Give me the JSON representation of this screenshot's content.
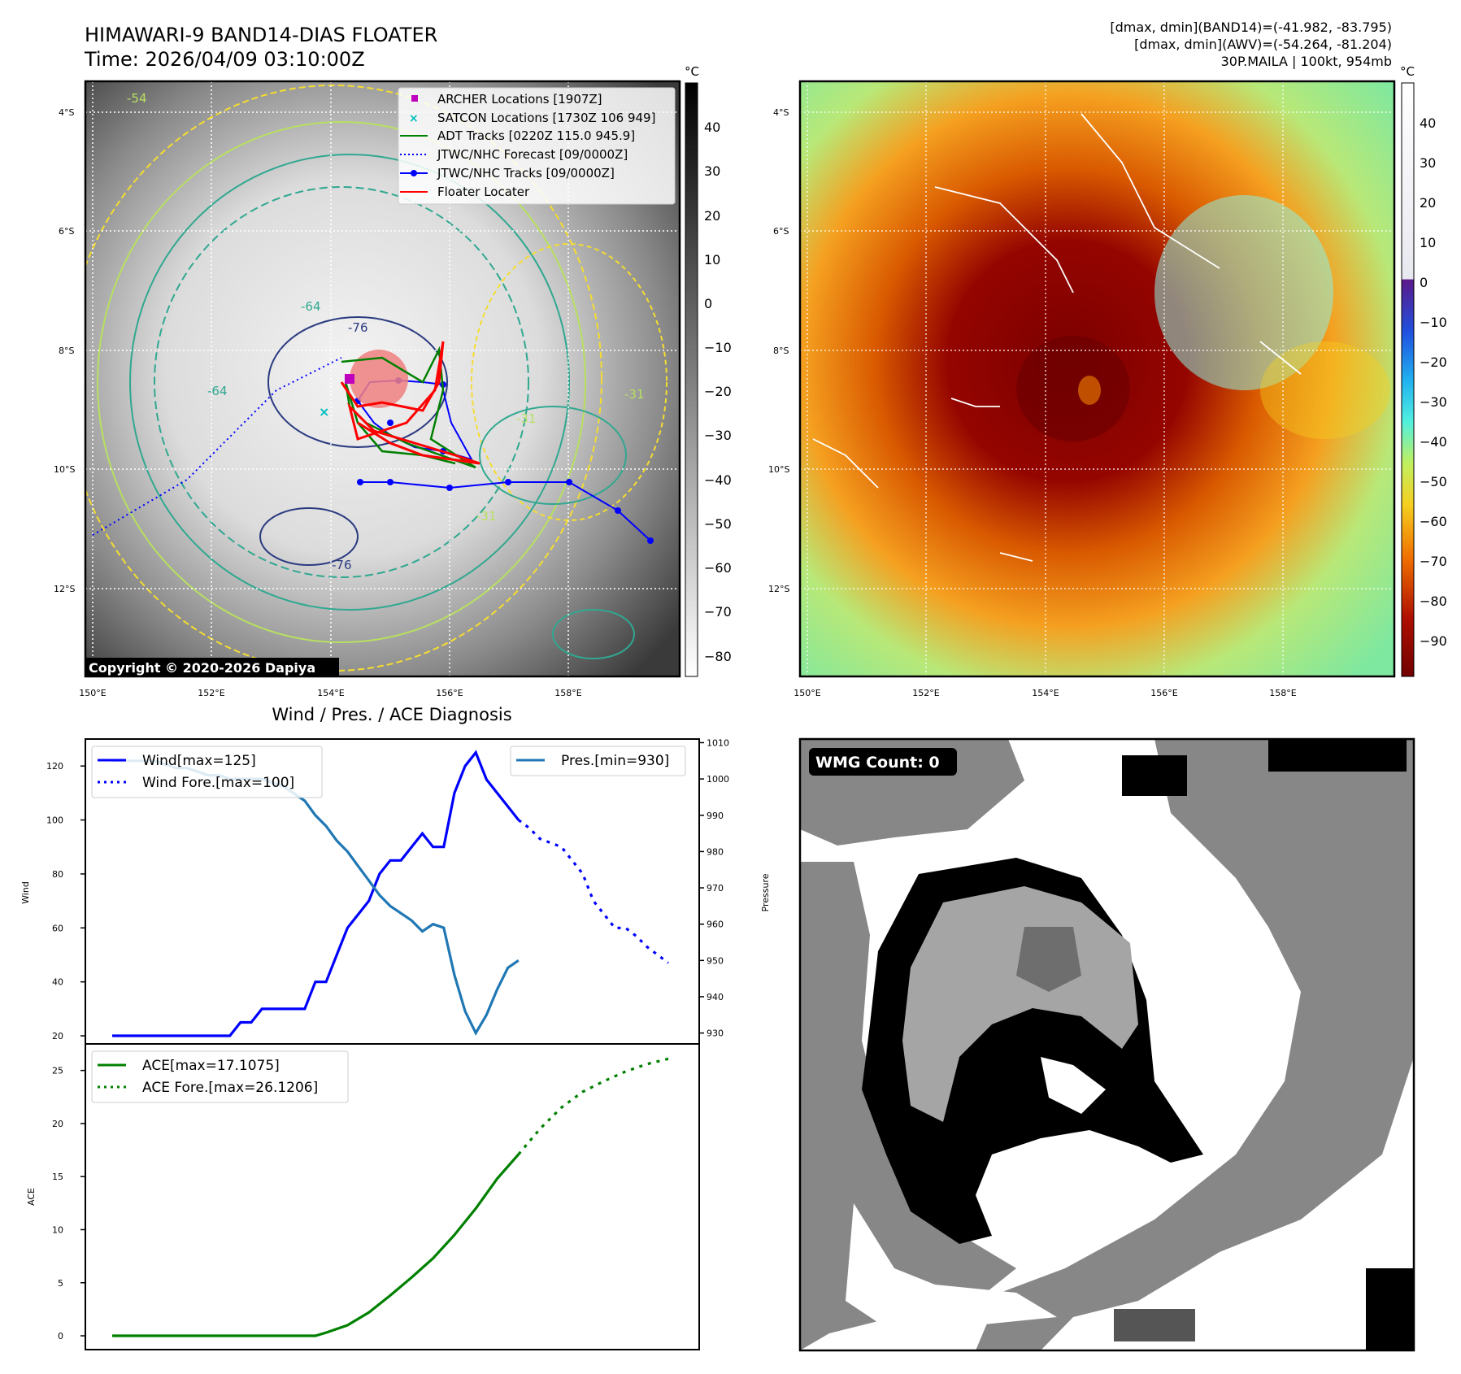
{
  "header": {
    "title_line1": "HIMAWARI-9 BAND14-DIAS FLOATER",
    "title_line2": "Time: 2026/04/09 03:10:00Z",
    "info_line1": "[dmax, dmin](BAND14)=(-41.982, -83.795)",
    "info_line2": "[dmax, dmin](AWV)=(-54.264, -81.204)",
    "info_line3": "30P.MAILA | 100kt, 954mb"
  },
  "map": {
    "lat_labels": [
      "4°S",
      "6°S",
      "8°S",
      "10°S",
      "12°S"
    ],
    "lon_labels": [
      "150°E",
      "152°E",
      "154°E",
      "156°E",
      "158°E"
    ],
    "copyright": "Copyright © 2020-2026 Dapiya",
    "contour_labels": [
      "-54",
      "-64",
      "-76",
      "-64",
      "-76",
      "-31",
      "-31",
      "-31"
    ],
    "legend": [
      {
        "label": "ARCHER Locations [1907Z]",
        "color": "#bf00bf",
        "style": "square"
      },
      {
        "label": "SATCON Locations [1730Z 106 949]",
        "color": "#00bfbf",
        "style": "x"
      },
      {
        "label": "ADT Tracks [0220Z 115.0 945.9]",
        "color": "#008000",
        "style": "line"
      },
      {
        "label": "JTWC/NHC Forecast [09/0000Z]",
        "color": "#0000ff",
        "style": "dotted"
      },
      {
        "label": "JTWC/NHC Tracks [09/0000Z]",
        "color": "#0000ff",
        "style": "line-dot"
      },
      {
        "label": "Floater Locater",
        "color": "#ff0000",
        "style": "line"
      }
    ]
  },
  "colorbar_ir": {
    "unit": "°C",
    "ticks": [
      "40",
      "30",
      "20",
      "10",
      "0",
      "−10",
      "−20",
      "−30",
      "−40",
      "−50",
      "−60",
      "−70",
      "−80"
    ]
  },
  "colorbar_wv": {
    "unit": "°C",
    "ticks": [
      "40",
      "30",
      "20",
      "10",
      "0",
      "−10",
      "−20",
      "−30",
      "−40",
      "−50",
      "−60",
      "−70",
      "−80",
      "−90"
    ]
  },
  "diag": {
    "title": "Wind / Pres. / ACE Diagnosis",
    "wind_ylabel": "Wind",
    "pres_ylabel": "Pressure",
    "ace_ylabel": "ACE",
    "legend_wind": "Wind[max=125]",
    "legend_wind_fore": "Wind Fore.[max=100]",
    "legend_pres": "Pres.[min=930]",
    "legend_ace": "ACE[max=17.1075]",
    "legend_ace_fore": "ACE Fore.[max=26.1206]"
  },
  "wmg": {
    "label": "WMG Count: 0"
  },
  "chart_data": [
    {
      "type": "line",
      "title": "Wind / Pres. / ACE Diagnosis",
      "ylabel": "Wind",
      "ylim": [
        17,
        130
      ],
      "yticks": [
        20,
        40,
        60,
        80,
        100,
        120
      ],
      "series": [
        {
          "name": "Wind[max=125]",
          "color": "#0000ff",
          "style": "solid",
          "x": [
            0,
            1,
            2,
            3,
            4,
            5,
            6,
            7,
            8,
            9,
            10,
            11,
            12,
            13,
            14,
            15,
            16,
            17,
            18,
            19,
            20,
            21,
            22,
            23,
            24,
            25,
            26,
            27,
            28,
            29,
            30,
            31,
            32,
            33,
            34,
            35,
            36,
            37,
            38
          ],
          "values": [
            20,
            20,
            20,
            20,
            20,
            20,
            20,
            20,
            20,
            20,
            20,
            20,
            25,
            25,
            30,
            30,
            30,
            30,
            30,
            40,
            40,
            50,
            60,
            65,
            70,
            80,
            85,
            85,
            90,
            95,
            90,
            90,
            110,
            120,
            125,
            115,
            110,
            105,
            100
          ]
        },
        {
          "name": "Wind Fore.[max=100]",
          "color": "#0000ff",
          "style": "dotted",
          "x": [
            38,
            39,
            40,
            42,
            44,
            45,
            46,
            47,
            48,
            49,
            50,
            52
          ],
          "values": [
            100,
            97,
            93,
            90,
            80,
            70,
            65,
            60,
            60,
            57,
            53,
            47
          ]
        }
      ]
    },
    {
      "type": "line",
      "ylabel": "Pressure",
      "ylim": [
        927,
        1011
      ],
      "yticks": [
        930,
        940,
        950,
        960,
        970,
        980,
        990,
        1000,
        1010
      ],
      "series": [
        {
          "name": "Pres.[min=930]",
          "color": "#1f77b4",
          "style": "solid",
          "x": [
            0,
            1,
            2,
            3,
            4,
            5,
            6,
            7,
            8,
            9,
            10,
            11,
            12,
            13,
            14,
            15,
            16,
            17,
            18,
            19,
            20,
            21,
            22,
            23,
            24,
            25,
            26,
            27,
            28,
            29,
            30,
            31,
            32,
            33,
            34,
            35,
            36,
            37,
            38
          ],
          "values": [
            1005,
            1005,
            1005,
            1005,
            1005,
            1004,
            1003,
            1003,
            1002,
            1001,
            1001,
            1000,
            1000,
            1000,
            1000,
            999,
            998,
            996,
            994,
            990,
            987,
            983,
            980,
            976,
            972,
            968,
            965,
            963,
            961,
            958,
            960,
            959,
            946,
            936,
            930,
            935,
            942,
            948,
            950
          ]
        }
      ]
    },
    {
      "type": "line",
      "ylabel": "ACE",
      "ylim": [
        -1.3,
        27.5
      ],
      "yticks": [
        0,
        5,
        10,
        15,
        20,
        25
      ],
      "series": [
        {
          "name": "ACE[max=17.1075]",
          "color": "#008000",
          "style": "solid",
          "x": [
            0,
            4,
            8,
            12,
            16,
            19,
            20,
            22,
            24,
            26,
            28,
            30,
            32,
            34,
            36,
            38
          ],
          "values": [
            0,
            0,
            0,
            0,
            0,
            0,
            0.3,
            1.0,
            2.2,
            3.8,
            5.5,
            7.3,
            9.5,
            12.0,
            14.8,
            17.1
          ]
        },
        {
          "name": "ACE Fore.[max=26.1206]",
          "color": "#008000",
          "style": "dotted",
          "x": [
            38,
            40,
            42,
            44,
            46,
            48,
            50,
            52
          ],
          "values": [
            17.1,
            19.5,
            21.5,
            23.0,
            24.0,
            24.9,
            25.6,
            26.1
          ]
        }
      ]
    }
  ]
}
